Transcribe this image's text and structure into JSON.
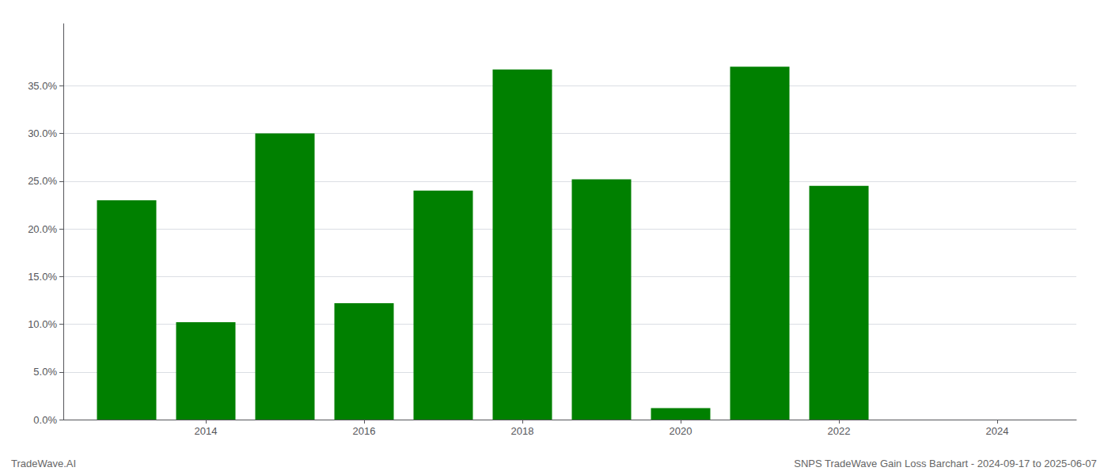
{
  "chart_data": {
    "type": "bar",
    "x": [
      2013,
      2014,
      2015,
      2016,
      2017,
      2018,
      2019,
      2020,
      2021,
      2022,
      2023
    ],
    "values": [
      0.23,
      0.102,
      0.3,
      0.122,
      0.24,
      0.367,
      0.252,
      0.012,
      0.37,
      0.245,
      0.0
    ],
    "color": "#008000",
    "xlim": [
      2012.2,
      2025.0
    ],
    "xticks": [
      2014,
      2016,
      2018,
      2020,
      2022,
      2024
    ],
    "ylim": [
      0,
      0.415
    ],
    "yticks": [
      {
        "value": 0.0,
        "label": "0.0%"
      },
      {
        "value": 0.05,
        "label": "5.0%"
      },
      {
        "value": 0.1,
        "label": "10.0%"
      },
      {
        "value": 0.15,
        "label": "15.0%"
      },
      {
        "value": 0.2,
        "label": "20.0%"
      },
      {
        "value": 0.25,
        "label": "25.0%"
      },
      {
        "value": 0.3,
        "label": "30.0%"
      },
      {
        "value": 0.35,
        "label": "35.0%"
      }
    ],
    "grid": true,
    "annotations": [
      "TradeWave.AI",
      "SNPS TradeWave Gain Loss Barchart - 2024-09-17 to 2025-06-07"
    ]
  }
}
